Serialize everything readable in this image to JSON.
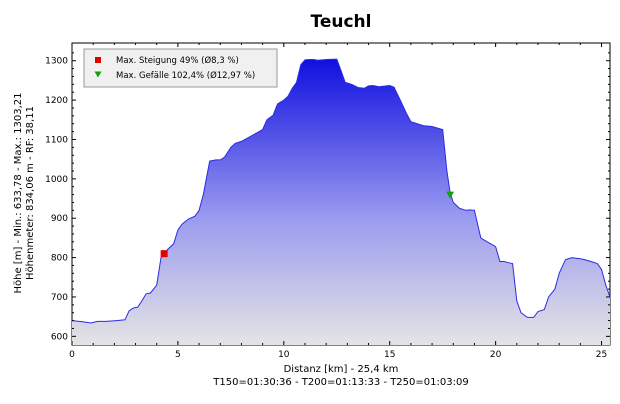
{
  "chart_data": {
    "type": "area",
    "title": "Teuchl",
    "xlabel_lines": [
      "Distanz [km] - 25,4 km",
      "T150=01:30:36 - T200=01:13:33 - T250=01:03:09"
    ],
    "ylabel_lines": [
      "Höhe [m] - Min.: 633,78 - Max.: 1303,21",
      "Höhenmeter: 834,06 m - RF: 38,11"
    ],
    "xlim": [
      0,
      25.4
    ],
    "ylim": [
      578,
      1345
    ],
    "x_ticks": [
      0,
      5,
      10,
      15,
      20,
      25
    ],
    "y_ticks": [
      600,
      700,
      800,
      900,
      1000,
      1100,
      1200,
      1300
    ],
    "grid": false,
    "legend_position": "top-left",
    "colors": {
      "fill_top": "#1010e0",
      "fill_mid": "#9a9af0",
      "fill_bottom": "#e4e4e4",
      "line": "#2b2be6",
      "max_climb_marker": "#e00000",
      "max_descent_marker": "#10a010"
    },
    "series": [
      {
        "x": [
          0,
          0.5,
          0.9,
          1.2,
          1.6,
          2.1,
          2.5,
          2.7,
          2.9,
          3.1,
          3.3,
          3.5,
          3.7,
          4.0,
          4.2,
          4.35,
          4.5,
          4.8,
          5.0,
          5.2,
          5.5,
          5.8,
          6.0,
          6.2,
          6.5,
          6.8,
          7.0,
          7.2,
          7.5,
          7.7,
          8.0,
          8.5,
          9.0,
          9.2,
          9.5,
          9.7,
          10.0,
          10.2,
          10.4,
          10.6,
          10.8,
          11.0,
          11.2,
          11.4,
          11.6,
          12.0,
          12.5,
          12.7,
          12.9,
          13.2,
          13.5,
          13.8,
          14.0,
          14.2,
          14.5,
          15.0,
          15.2,
          15.5,
          15.8,
          16.0,
          16.3,
          16.6,
          17.0,
          17.3,
          17.5,
          17.7,
          17.85,
          18.0,
          18.3,
          18.6,
          18.8,
          19.0,
          19.3,
          19.6,
          20.0,
          20.2,
          20.4,
          20.6,
          20.8,
          21.0,
          21.2,
          21.5,
          21.8,
          22.0,
          22.3,
          22.5,
          22.8,
          23.0,
          23.3,
          23.6,
          24.0,
          24.2,
          24.5,
          24.8,
          25.0,
          25.2,
          25.4
        ],
        "y": [
          640,
          637,
          634,
          638,
          638,
          640,
          642,
          665,
          672,
          674,
          690,
          708,
          710,
          730,
          800,
          806,
          820,
          835,
          870,
          885,
          898,
          905,
          920,
          960,
          1045,
          1048,
          1048,
          1055,
          1080,
          1090,
          1095,
          1110,
          1125,
          1150,
          1162,
          1190,
          1200,
          1210,
          1230,
          1245,
          1290,
          1302,
          1303,
          1303,
          1301,
          1303,
          1304,
          1275,
          1245,
          1240,
          1232,
          1230,
          1236,
          1237,
          1234,
          1237,
          1233,
          1200,
          1165,
          1145,
          1140,
          1135,
          1133,
          1128,
          1125,
          1020,
          965,
          940,
          925,
          920,
          921,
          920,
          850,
          840,
          828,
          790,
          790,
          787,
          785,
          690,
          660,
          648,
          648,
          663,
          668,
          700,
          720,
          760,
          795,
          800,
          797,
          795,
          790,
          785,
          770,
          730,
          700
        ]
      }
    ],
    "markers": [
      {
        "label": "Max. Steigung 49% (Ø8,3 %)",
        "symbol": "square",
        "x": 4.35,
        "y": 810
      },
      {
        "label": "Max. Gefälle 102,4% (Ø12,97 %)",
        "symbol": "triangle-down",
        "x": 17.85,
        "y": 960
      }
    ]
  }
}
